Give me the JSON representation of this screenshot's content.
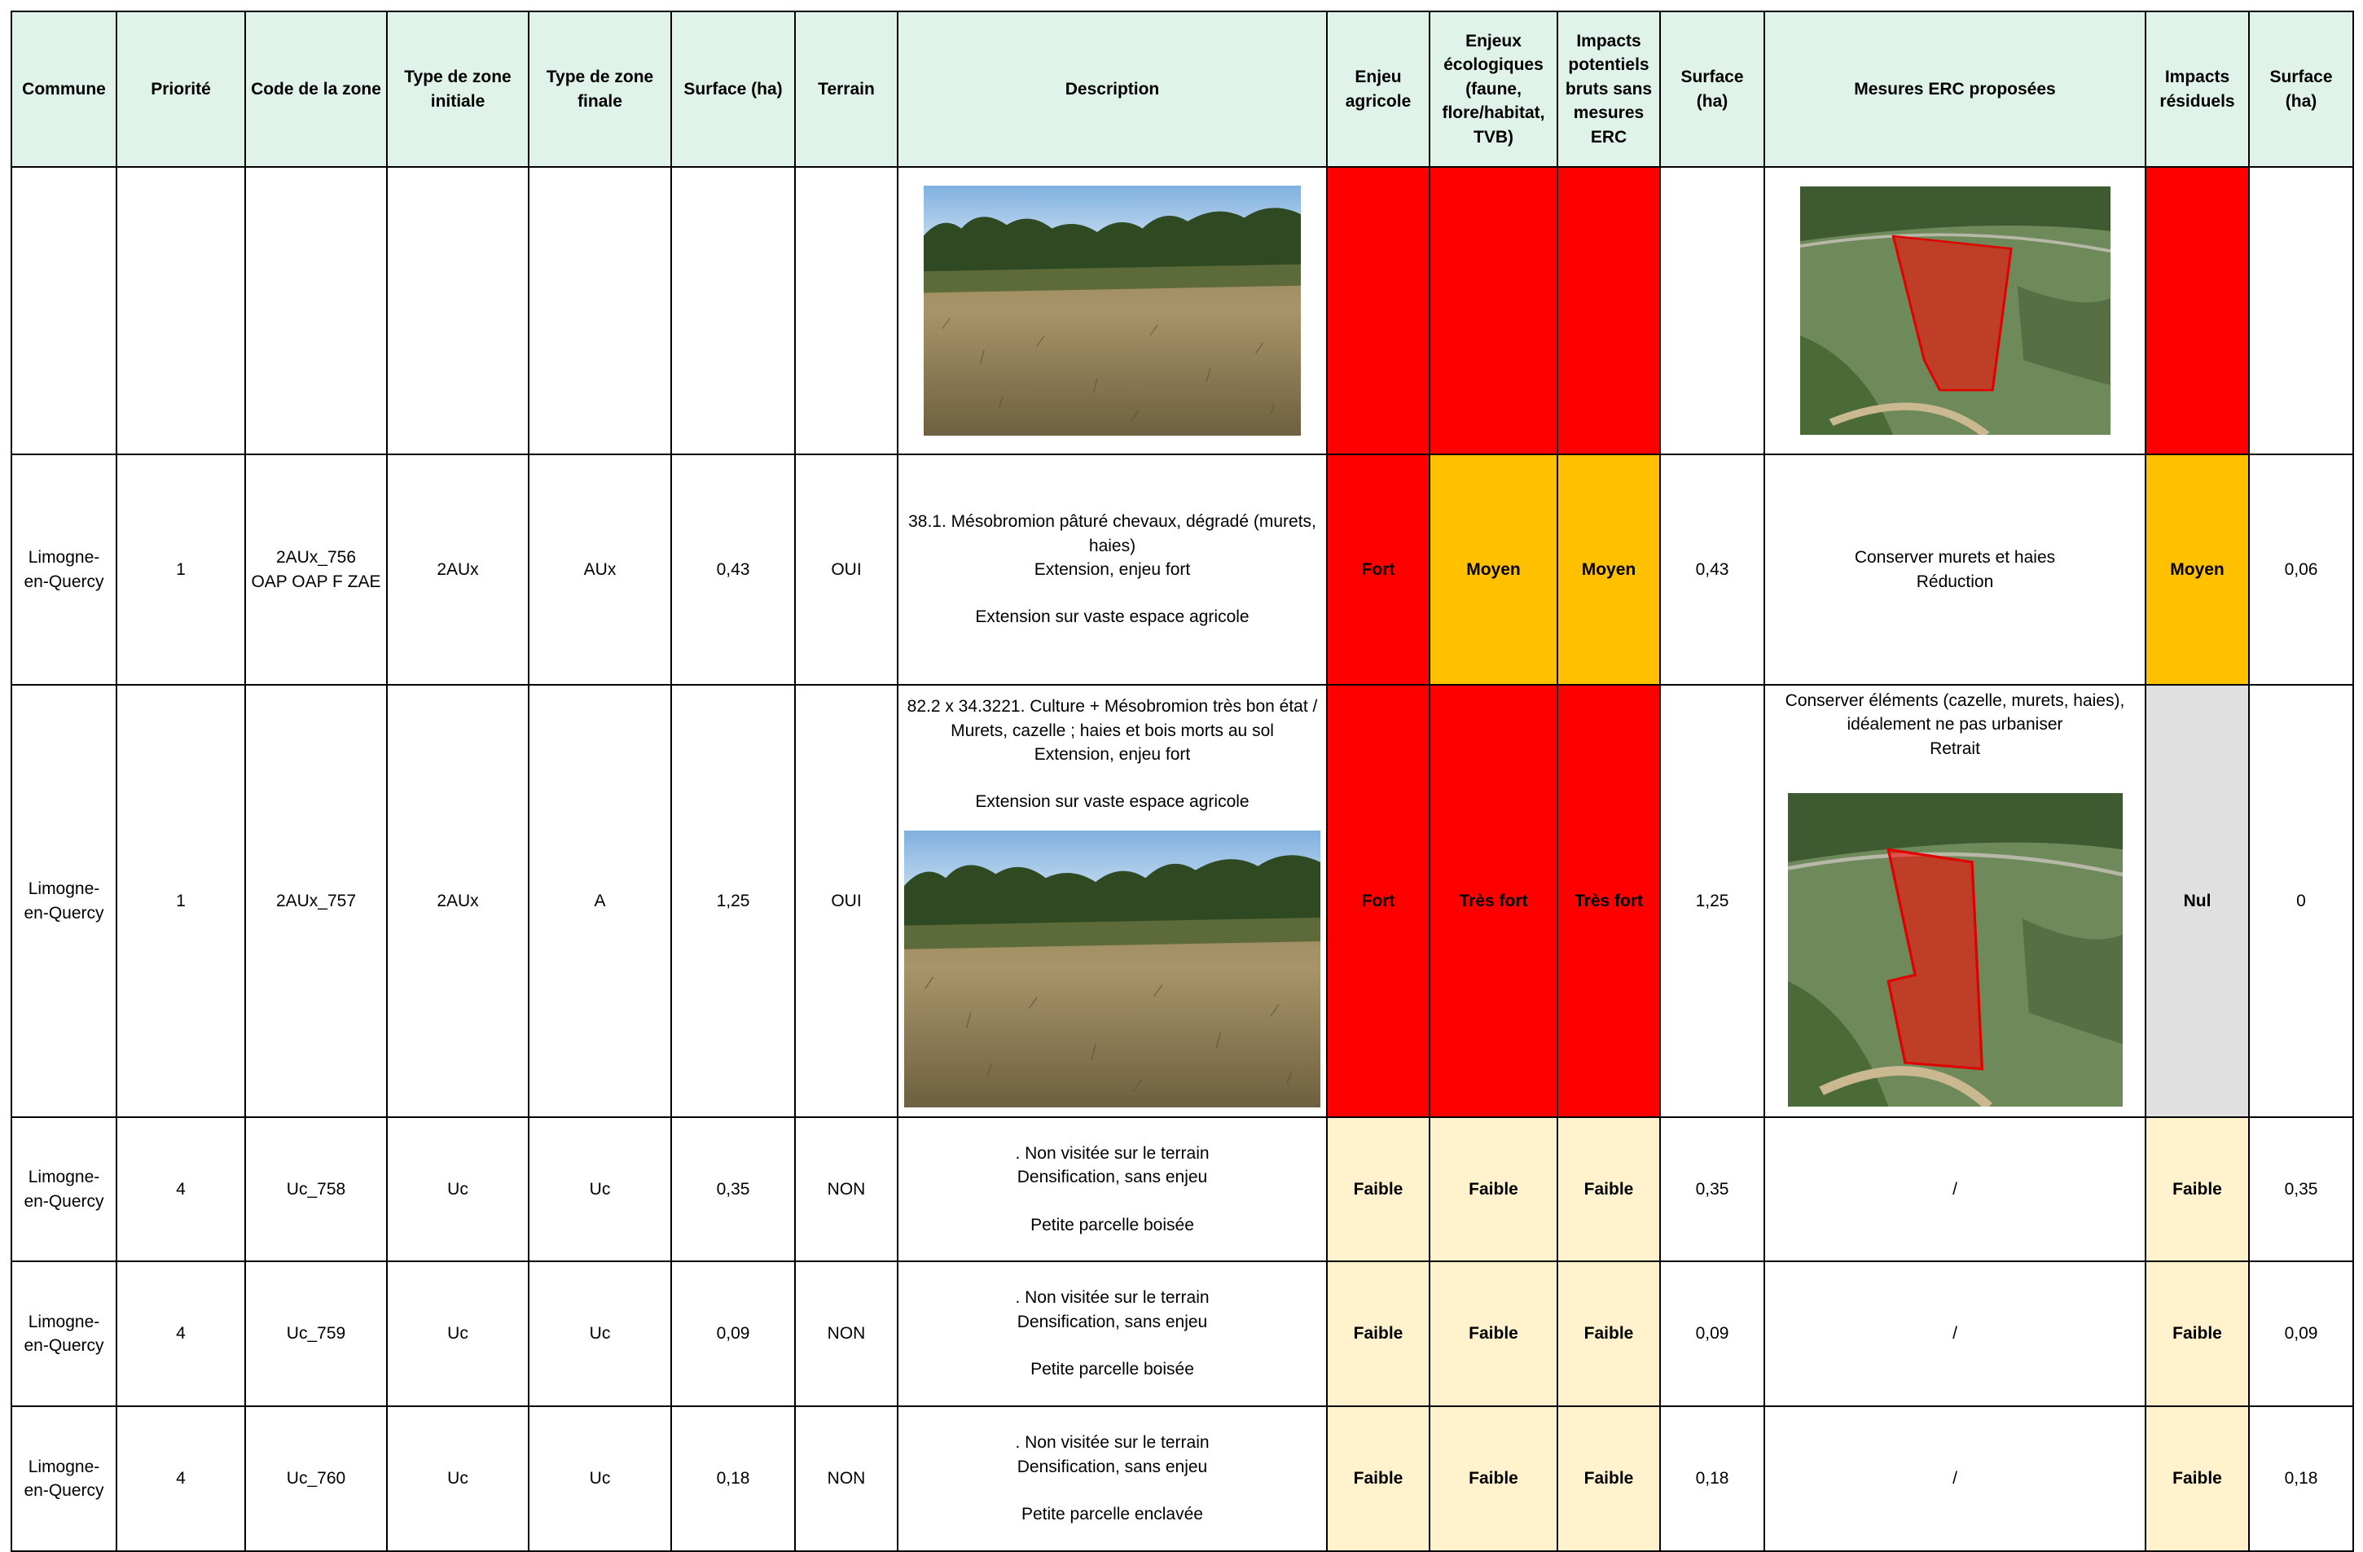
{
  "table": {
    "header": [
      "Commune",
      "Priorité",
      "Code de la zone",
      "Type de zone initiale",
      "Type de zone finale",
      "Surface (ha)",
      "Terrain",
      "Description",
      "Enjeu agricole",
      "Enjeux écologiques (faune, flore/habitat, TVB)",
      "Impacts potentiels bruts sans mesures ERC",
      "Surface (ha)",
      "Mesures ERC proposées",
      "Impacts résiduels",
      "Surface (ha)"
    ],
    "rows": [
      {
        "commune": "Limogne-\nen-Quercy",
        "priorite": "1",
        "code": "2AUx_756\nOAP OAP F ZAE",
        "type_initial": "2AUx",
        "type_final": "AUx",
        "surface": "0,43",
        "terrain": "OUI",
        "description": [
          "38.1. Mésobromion pâturé chevaux, dégradé (murets, haies)\nExtension, enjeu fort",
          "Extension sur vaste espace agricole"
        ],
        "enjeu_agricole": {
          "text": "Fort",
          "color": "#ff0000"
        },
        "enjeux_ecologiques": {
          "text": "Moyen",
          "color": "#ffc000"
        },
        "impacts_bruts": {
          "text": "Moyen",
          "color": "#ffc000"
        },
        "surface_2": "0,43",
        "mesures": "Conserver murets et haies\nRéduction",
        "impacts_residuels": {
          "text": "Moyen",
          "color": "#ffc000"
        },
        "surface_residuelle": "0,06"
      },
      {
        "commune": "Limogne-\nen-Quercy",
        "priorite": "1",
        "code": "2AUx_757",
        "type_initial": "2AUx",
        "type_final": "A",
        "surface": "1,25",
        "terrain": "OUI",
        "description": [
          "82.2 x 34.3221. Culture + Mésobromion très bon état / Murets, cazelle ; haies et bois morts au sol\nExtension, enjeu fort",
          "Extension sur vaste espace agricole"
        ],
        "enjeu_agricole": {
          "text": "Fort",
          "color": "#ff0000"
        },
        "enjeux_ecologiques": {
          "text": "Très fort",
          "color": "#ff0000"
        },
        "impacts_bruts": {
          "text": "Très fort",
          "color": "#ff0000"
        },
        "surface_2": "1,25",
        "mesures": "Conserver éléments (cazelle, murets, haies), idéalement ne pas urbaniser\nRetrait",
        "impacts_residuels": {
          "text": "Nul",
          "color": "#e0e0e0"
        },
        "surface_residuelle": "0"
      },
      {
        "commune": "Limogne-\nen-Quercy",
        "priorite": "4",
        "code": "Uc_758",
        "type_initial": "Uc",
        "type_final": "Uc",
        "surface": "0,35",
        "terrain": "NON",
        "description": [
          ". Non visitée sur le terrain\nDensification, sans enjeu",
          "Petite parcelle boisée"
        ],
        "enjeu_agricole": {
          "text": "Faible",
          "color": "#fff2cc"
        },
        "enjeux_ecologiques": {
          "text": "Faible",
          "color": "#fff2cc"
        },
        "impacts_bruts": {
          "text": "Faible",
          "color": "#fff2cc"
        },
        "surface_2": "0,35",
        "mesures": "/",
        "impacts_residuels": {
          "text": "Faible",
          "color": "#fff2cc"
        },
        "surface_residuelle": "0,35"
      },
      {
        "commune": "Limogne-\nen-Quercy",
        "priorite": "4",
        "code": "Uc_759",
        "type_initial": "Uc",
        "type_final": "Uc",
        "surface": "0,09",
        "terrain": "NON",
        "description": [
          ". Non visitée sur le terrain\nDensification, sans enjeu",
          "Petite parcelle boisée"
        ],
        "enjeu_agricole": {
          "text": "Faible",
          "color": "#fff2cc"
        },
        "enjeux_ecologiques": {
          "text": "Faible",
          "color": "#fff2cc"
        },
        "impacts_bruts": {
          "text": "Faible",
          "color": "#fff2cc"
        },
        "surface_2": "0,09",
        "mesures": "/",
        "impacts_residuels": {
          "text": "Faible",
          "color": "#fff2cc"
        },
        "surface_residuelle": "0,09"
      },
      {
        "commune": "Limogne-\nen-Quercy",
        "priorite": "4",
        "code": "Uc_760",
        "type_initial": "Uc",
        "type_final": "Uc",
        "surface": "0,18",
        "terrain": "NON",
        "description": [
          ". Non visitée sur le terrain\nDensification, sans enjeu",
          "Petite parcelle enclavée"
        ],
        "enjeu_agricole": {
          "text": "Faible",
          "color": "#fff2cc"
        },
        "enjeux_ecologiques": {
          "text": "Faible",
          "color": "#fff2cc"
        },
        "impacts_bruts": {
          "text": "Faible",
          "color": "#fff2cc"
        },
        "surface_2": "0,18",
        "mesures": "/",
        "impacts_residuels": {
          "text": "Faible",
          "color": "#fff2cc"
        },
        "surface_residuelle": "0,18"
      }
    ]
  }
}
